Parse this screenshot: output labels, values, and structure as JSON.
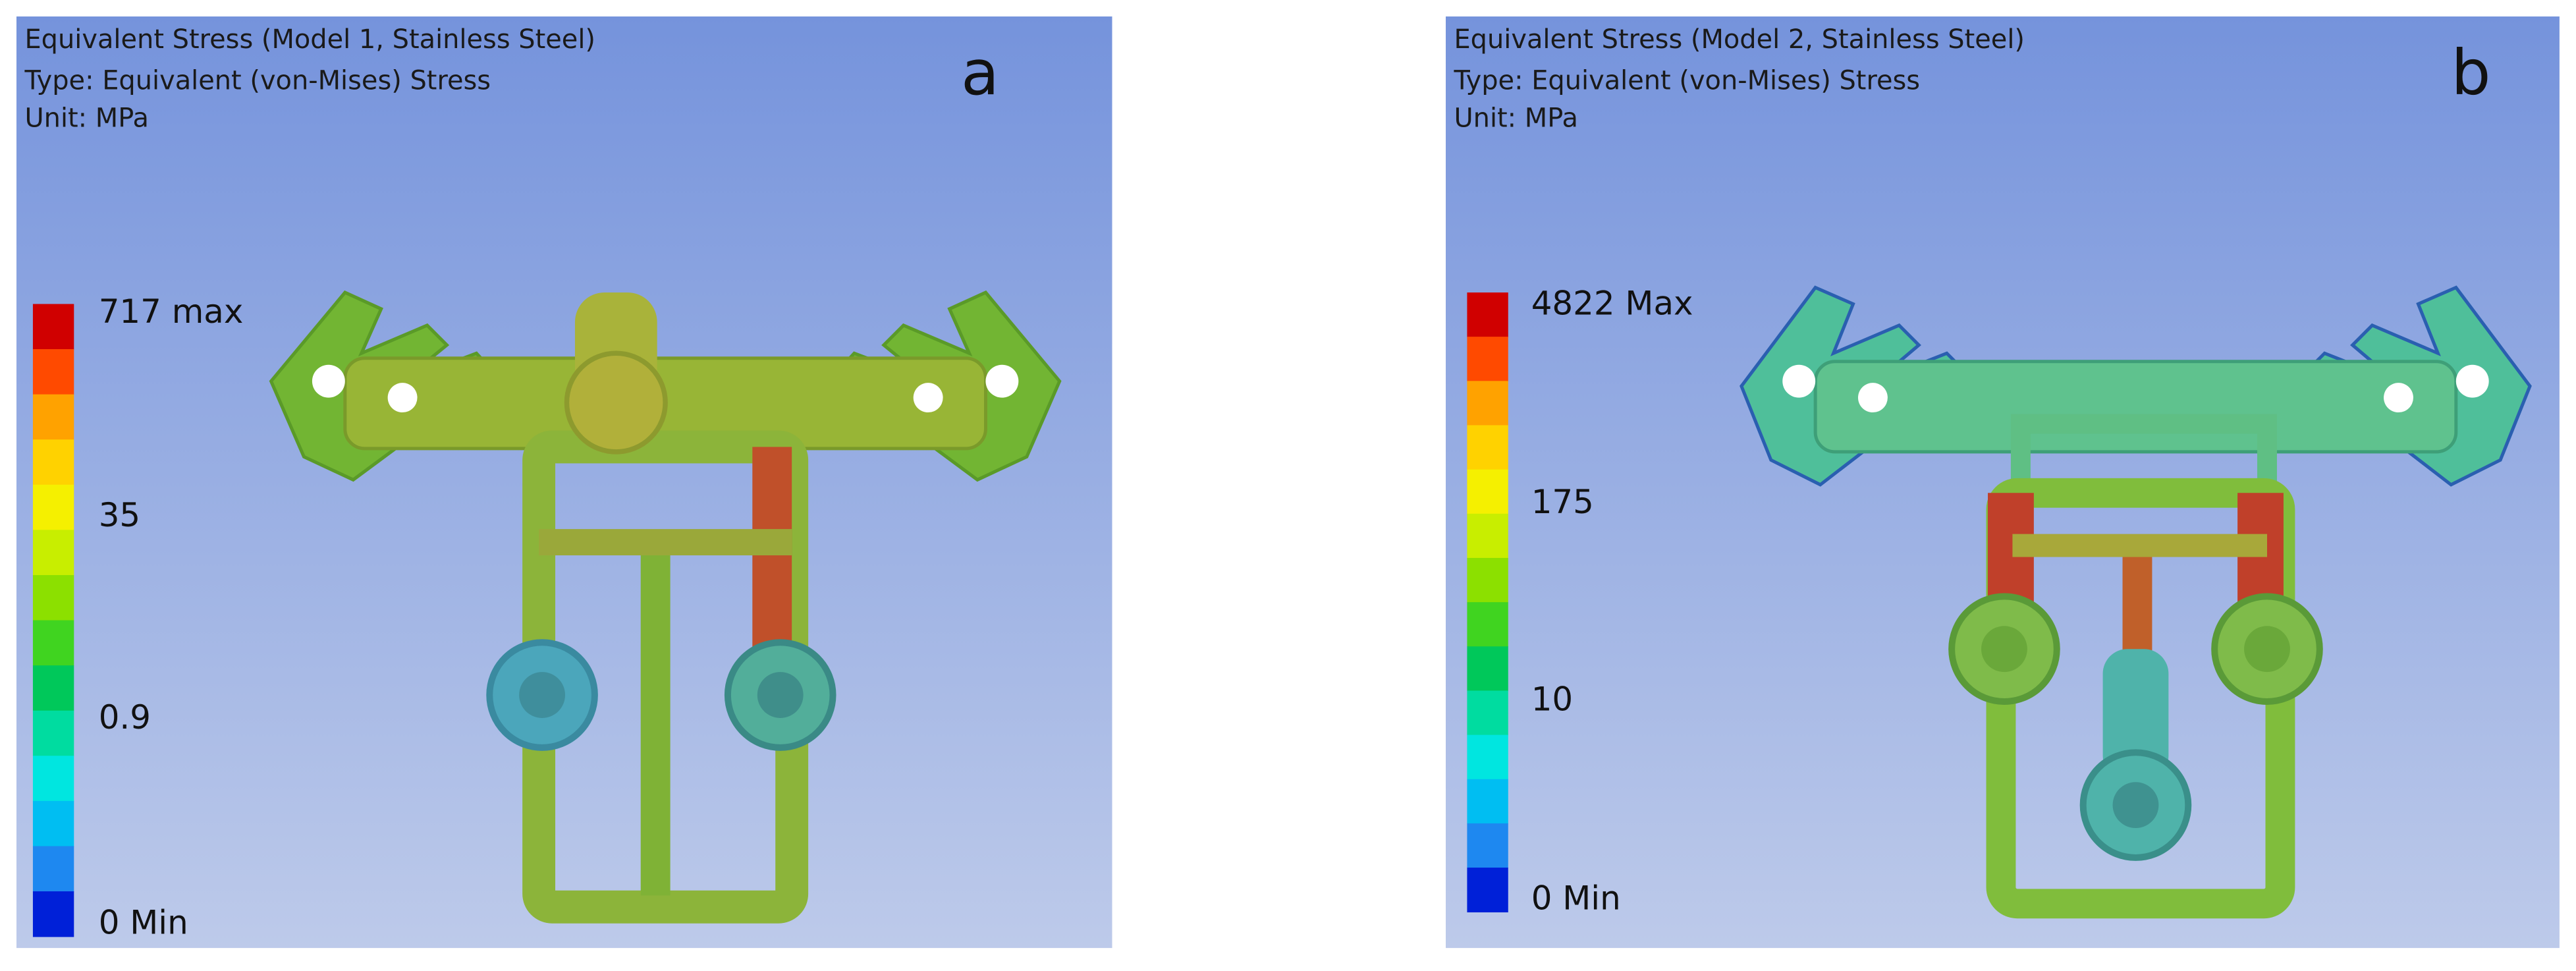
{
  "panels": [
    {
      "label": "a",
      "header": [
        "Equivalent Stress (Model 1, Stainless Steel)",
        "Type: Equivalent (von-Mises) Stress",
        "Unit: MPa"
      ],
      "legend": [
        "717 max",
        "35",
        "0.9",
        "0 Min"
      ]
    },
    {
      "label": "b",
      "header": [
        "Equivalent Stress (Model 2, Stainless Steel)",
        "Type: Equivalent (von-Mises) Stress",
        "Unit: MPa"
      ],
      "legend": [
        "4822 Max",
        "175",
        "10",
        "0 Min"
      ]
    }
  ]
}
